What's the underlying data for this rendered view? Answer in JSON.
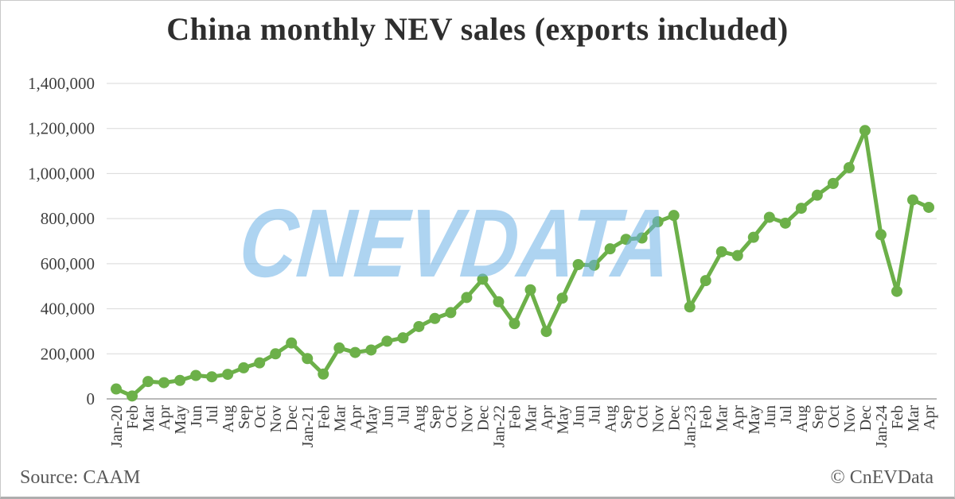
{
  "watermark": {
    "text": "CNEVDATA",
    "color": "#6BB1E5"
  },
  "footer": {
    "source": "Source: CAAM",
    "credit": "© CnEVData"
  },
  "chart_data": {
    "type": "line",
    "title": "China monthly NEV sales (exports included)",
    "xlabel": "",
    "ylabel": "",
    "ylim": [
      0,
      1400000
    ],
    "ytick_step": 200000,
    "grid": true,
    "legend_position": "none",
    "line_color": "#6CB049",
    "gridline_color": "#d9d9d9",
    "axis_line_color": "#a3a3a3",
    "categories": [
      "Jan-20",
      "Feb",
      "Mar",
      "Apr",
      "May",
      "Jun",
      "Jul",
      "Aug",
      "Sep",
      "Oct",
      "Nov",
      "Dec",
      "Jan-21",
      "Feb",
      "Mar",
      "Apr",
      "May",
      "Jun",
      "Jul",
      "Aug",
      "Sep",
      "Oct",
      "Nov",
      "Dec",
      "Jan-22",
      "Feb",
      "Mar",
      "Apr",
      "May",
      "Jun",
      "Jul",
      "Aug",
      "Sep",
      "Oct",
      "Nov",
      "Dec",
      "Jan-23",
      "Feb",
      "Mar",
      "Apr",
      "May",
      "Jun",
      "Jul",
      "Aug",
      "Sep",
      "Oct",
      "Nov",
      "Dec",
      "Jan-24",
      "Feb",
      "Mar",
      "Apr"
    ],
    "series": [
      {
        "name": "China monthly NEV sales",
        "values": [
          44000,
          13000,
          77000,
          72000,
          82000,
          104000,
          98000,
          109000,
          138000,
          160000,
          200000,
          248000,
          179000,
          110000,
          226000,
          206000,
          217000,
          256000,
          271000,
          321000,
          357000,
          383000,
          450000,
          531000,
          431000,
          334000,
          484000,
          299000,
          447000,
          596000,
          593000,
          666000,
          708000,
          714000,
          786000,
          814000,
          408000,
          525000,
          653000,
          636000,
          717000,
          806000,
          780000,
          846000,
          904000,
          956000,
          1026000,
          1191000,
          729000,
          477000,
          883000,
          850000
        ]
      }
    ]
  }
}
